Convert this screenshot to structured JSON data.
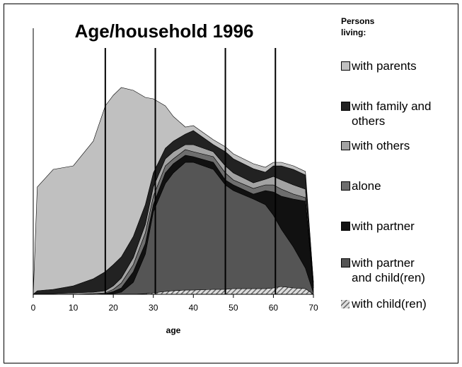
{
  "chart_data": {
    "type": "stacked_area",
    "title": "Age/household  1996",
    "x_label": "age",
    "legend_title": "Persons\nliving:",
    "x": [
      0,
      1,
      5,
      10,
      15,
      18,
      20,
      22,
      25,
      28,
      30,
      33,
      35,
      38,
      40,
      45,
      48,
      50,
      55,
      58,
      60,
      62,
      65,
      68,
      70
    ],
    "xlim": [
      0,
      70
    ],
    "xticks": [
      0,
      10,
      20,
      30,
      40,
      50,
      60,
      70
    ],
    "ylim": [
      0,
      377
    ],
    "reference_lines": [
      18,
      30.5,
      48,
      60.5
    ],
    "series": [
      {
        "name": "with child(ren)",
        "color": "#8c8c8c",
        "pattern": "hatch",
        "values": [
          0,
          0,
          0,
          0,
          0,
          0,
          0,
          0,
          0,
          1,
          2,
          4,
          5,
          6,
          6,
          7,
          7,
          8,
          8,
          8,
          9,
          11,
          9,
          8,
          0
        ]
      },
      {
        "name": "with partner\nand child(ren)",
        "color": "#555555",
        "values": [
          0,
          0,
          0,
          0,
          0,
          0,
          1,
          3,
          17,
          56,
          115,
          153,
          167,
          181,
          181,
          170,
          148,
          139,
          127,
          119,
          103,
          81,
          58,
          29,
          2
        ]
      },
      {
        "name": "with partner",
        "color": "#111111",
        "values": [
          0,
          0,
          0,
          0,
          0,
          1,
          3,
          6,
          15,
          15,
          10,
          15,
          13,
          10,
          8,
          10,
          7,
          8,
          7,
          20,
          33,
          47,
          68,
          95,
          7
        ]
      },
      {
        "name": "alone",
        "color": "#6e6e6e",
        "values": [
          0,
          0,
          0,
          0,
          1,
          1,
          3,
          7,
          10,
          15,
          12,
          10,
          7,
          8,
          7,
          8,
          10,
          7,
          8,
          8,
          10,
          10,
          7,
          5,
          0
        ]
      },
      {
        "name": "with others",
        "color": "#a3a3a3",
        "values": [
          0,
          1,
          1,
          2,
          2,
          3,
          5,
          7,
          10,
          12,
          13,
          10,
          10,
          7,
          10,
          7,
          10,
          10,
          8,
          8,
          12,
          13,
          13,
          12,
          3
        ]
      },
      {
        "name": "with family and\nothers",
        "color": "#222222",
        "values": [
          0,
          4,
          6,
          10,
          19,
          27,
          30,
          30,
          30,
          28,
          20,
          15,
          15,
          15,
          20,
          10,
          20,
          20,
          20,
          10,
          15,
          20,
          22,
          20,
          5
        ]
      },
      {
        "name": "with parents",
        "color": "#c0c0c0",
        "values": [
          0,
          147,
          170,
          170,
          195,
          235,
          240,
          240,
          207,
          152,
          105,
          60,
          35,
          10,
          7,
          7,
          7,
          7,
          7,
          7,
          5,
          5,
          5,
          5,
          0
        ]
      }
    ],
    "legend_order": [
      6,
      5,
      4,
      3,
      2,
      1,
      0
    ]
  }
}
